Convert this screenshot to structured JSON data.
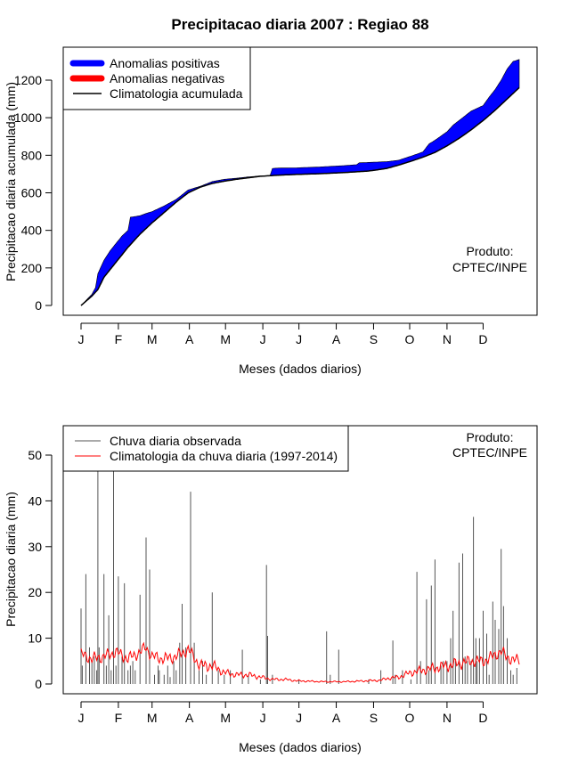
{
  "title": "Precipitacao diaria 2007 : Regiao 88",
  "product_label": [
    "Produto:",
    "CPTEC/INPE"
  ],
  "colors": {
    "positive": "#0000ff",
    "negative": "#ff0000",
    "climatology_cum": "#000000",
    "observed_daily": "#555555",
    "climatology_daily": "#ff0000"
  },
  "chart_data": [
    {
      "type": "area",
      "id": "accumulated",
      "xlabel": "Meses (dados diarios)",
      "ylabel": "Precipitacao diaria acumulada (mm)",
      "xlim": [
        1,
        365
      ],
      "ylim": [
        0,
        1320
      ],
      "month_ticks": {
        "positions": [
          1,
          32,
          60,
          91,
          121,
          152,
          182,
          213,
          244,
          274,
          305,
          335
        ],
        "labels": [
          "J",
          "F",
          "M",
          "A",
          "M",
          "J",
          "J",
          "A",
          "S",
          "O",
          "N",
          "D"
        ]
      },
      "yticks": [
        0,
        200,
        400,
        600,
        800,
        1000,
        1200
      ],
      "legend": {
        "position": "top-left",
        "items": [
          {
            "label": "Anomalias positivas",
            "color": "#0000ff",
            "style": "thick"
          },
          {
            "label": "Anomalias negativas",
            "color": "#ff0000",
            "style": "thick"
          },
          {
            "label": "Climatologia acumulada",
            "color": "#000000",
            "style": "line"
          }
        ]
      },
      "climatology_cum": {
        "x": [
          1,
          10,
          15,
          20,
          25,
          30,
          40,
          50,
          60,
          70,
          80,
          90,
          100,
          110,
          120,
          130,
          140,
          150,
          165,
          180,
          200,
          220,
          240,
          255,
          265,
          275,
          285,
          295,
          305,
          315,
          325,
          335,
          345,
          355,
          365
        ],
        "y": [
          0,
          50,
          85,
          150,
          190,
          230,
          310,
          380,
          440,
          495,
          550,
          600,
          630,
          650,
          662,
          672,
          680,
          688,
          694,
          698,
          702,
          708,
          716,
          730,
          748,
          768,
          790,
          815,
          850,
          890,
          935,
          985,
          1040,
          1100,
          1160
        ]
      },
      "observed_cum": {
        "x": [
          1,
          10,
          13,
          15,
          20,
          25,
          30,
          35,
          40,
          42,
          50,
          55,
          60,
          70,
          80,
          90,
          95,
          100,
          110,
          120,
          130,
          140,
          150,
          158,
          160,
          165,
          180,
          200,
          220,
          230,
          232,
          240,
          255,
          265,
          270,
          275,
          285,
          290,
          295,
          305,
          310,
          315,
          320,
          325,
          330,
          335,
          340,
          345,
          350,
          355,
          360,
          365
        ],
        "y": [
          0,
          60,
          95,
          170,
          240,
          290,
          330,
          370,
          400,
          470,
          478,
          490,
          500,
          530,
          565,
          615,
          625,
          635,
          660,
          672,
          678,
          685,
          690,
          692,
          730,
          732,
          733,
          738,
          745,
          750,
          760,
          762,
          766,
          774,
          785,
          795,
          818,
          860,
          880,
          925,
          960,
          985,
          1010,
          1035,
          1050,
          1065,
          1110,
          1150,
          1200,
          1260,
          1300,
          1310
        ]
      }
    },
    {
      "type": "line",
      "id": "daily",
      "xlabel": "Meses (dados diarios)",
      "ylabel": "Precipitacao diaria (mm)",
      "xlim": [
        1,
        365
      ],
      "ylim": [
        0,
        53
      ],
      "month_ticks": {
        "positions": [
          1,
          32,
          60,
          91,
          121,
          152,
          182,
          213,
          244,
          274,
          305,
          335
        ],
        "labels": [
          "J",
          "F",
          "M",
          "A",
          "M",
          "J",
          "J",
          "A",
          "S",
          "O",
          "N",
          "D"
        ]
      },
      "yticks": [
        0,
        10,
        20,
        30,
        40,
        50
      ],
      "legend": {
        "position": "top-left",
        "items": [
          {
            "label": "Chuva diaria observada",
            "color": "#555555",
            "style": "line"
          },
          {
            "label": "Climatologia da chuva diaria (1997-2014)",
            "color": "#ff0000",
            "style": "line"
          }
        ]
      },
      "observed_spikes": {
        "day": [
          1,
          2,
          5,
          8,
          10,
          12,
          14,
          15,
          16,
          20,
          22,
          24,
          26,
          28,
          30,
          32,
          35,
          37,
          40,
          42,
          44,
          46,
          50,
          55,
          58,
          62,
          65,
          66,
          70,
          73,
          75,
          78,
          80,
          83,
          85,
          88,
          92,
          95,
          99,
          102,
          105,
          110,
          115,
          120,
          125,
          135,
          140,
          150,
          155,
          156,
          160,
          182,
          205,
          208,
          215,
          240,
          250,
          260,
          262,
          268,
          275,
          280,
          283,
          288,
          290,
          292,
          295,
          300,
          302,
          305,
          308,
          310,
          312,
          315,
          318,
          320,
          322,
          325,
          327,
          329,
          330,
          332,
          335,
          338,
          340,
          343,
          345,
          348,
          350,
          352,
          355,
          358,
          360,
          363
        ],
        "value": [
          16.5,
          4,
          24,
          8,
          5,
          6,
          3,
          47,
          8,
          24,
          4,
          15,
          3,
          47,
          4,
          23.5,
          6,
          22,
          3,
          4,
          5,
          3,
          19.5,
          32,
          25,
          2,
          4,
          3,
          2,
          4,
          1.5,
          5,
          3,
          9,
          17.5,
          8,
          42,
          9,
          3,
          5,
          2,
          20,
          3,
          2,
          3,
          7.5,
          2,
          1,
          26,
          10.5,
          2,
          1,
          11.5,
          2,
          7.5,
          1,
          3,
          9.5,
          2,
          3,
          1,
          24.5,
          5,
          18.5,
          3,
          21.5,
          27.2,
          4,
          5,
          5,
          10,
          16,
          5,
          26.5,
          28.5,
          6,
          5,
          5,
          36.5,
          10,
          5,
          10,
          16,
          11,
          2,
          18,
          14,
          12,
          29.5,
          17,
          10,
          3,
          2,
          3.5
        ]
      },
      "climatology_daily": {
        "x": [
          1,
          10,
          20,
          30,
          40,
          50,
          55,
          60,
          70,
          80,
          90,
          100,
          110,
          120,
          130,
          140,
          150,
          160,
          170,
          180,
          200,
          220,
          240,
          250,
          255,
          265,
          275,
          285,
          295,
          305,
          315,
          325,
          335,
          340,
          345,
          350,
          355,
          360,
          365
        ],
        "y": [
          6.5,
          5.5,
          6,
          7,
          5.5,
          7,
          8,
          6,
          5.5,
          6,
          7.5,
          4,
          4,
          2.5,
          2,
          2,
          1.5,
          1,
          1,
          0.7,
          0.5,
          0.5,
          0.7,
          0.8,
          1.2,
          1.5,
          2.5,
          3,
          3.5,
          4,
          4.5,
          5,
          5,
          5.5,
          6.5,
          7,
          6,
          5,
          5.5
        ]
      }
    }
  ]
}
